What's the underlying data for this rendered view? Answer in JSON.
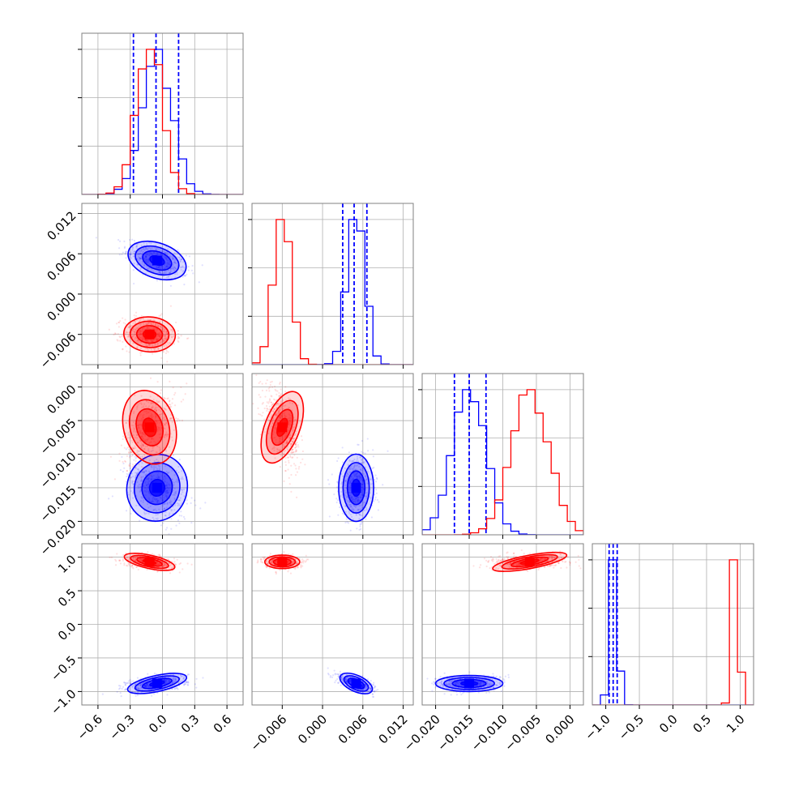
{
  "chart_data": {
    "type": "corner",
    "colors": {
      "series_a": "#0000ff",
      "series_b": "#ff0000",
      "grid": "#b0b0b0",
      "frame": "#808080"
    },
    "series": [
      {
        "color": "#0000ff",
        "centers": [
          -0.05,
          0.005,
          -0.015,
          -0.88
        ],
        "spreads": [
          0.14,
          0.0013,
          0.0025,
          0.06
        ],
        "tilt": [
          [
            -0.55,
            -0.4,
            0.35,
            0.0
          ],
          [
            0.0,
            -0.7,
            0.0
          ],
          [
            0.0,
            0.3
          ],
          []
        ],
        "quantiles": [
          [
            -0.27,
            -0.06,
            0.15
          ],
          [
            0.003,
            0.0047,
            0.0066
          ],
          [
            -0.0172,
            -0.015,
            -0.0125
          ],
          [
            -0.95,
            -0.89,
            -0.83
          ]
        ]
      },
      {
        "color": "#ff0000",
        "centers": [
          -0.12,
          -0.006,
          -0.006,
          0.93
        ],
        "spreads": [
          0.12,
          0.0013,
          0.0028,
          0.05
        ],
        "tilt": [
          [
            -0.1,
            0.45,
            -0.35,
            0.0
          ],
          [
            -0.6,
            0.0,
            0.0
          ],
          [
            0.3,
            0.25
          ],
          []
        ],
        "quantiles": []
      }
    ],
    "axes": [
      {
        "range": [
          -0.75,
          0.75
        ],
        "ticks": [
          -0.6,
          -0.3,
          0.0,
          0.3,
          0.6
        ],
        "tick_labels": [
          "−0.6",
          "−0.3",
          "0.0",
          "0.3",
          "0.6"
        ]
      },
      {
        "range": [
          -0.0105,
          0.0135
        ],
        "ticks": [
          -0.006,
          0.0,
          0.006,
          0.012
        ],
        "tick_labels": [
          "−0.006",
          "0.000",
          "0.006",
          "0.012"
        ]
      },
      {
        "range": [
          -0.022,
          0.002
        ],
        "ticks": [
          -0.02,
          -0.015,
          -0.01,
          -0.005,
          0.0
        ],
        "tick_labels": [
          "−0.020",
          "−0.015",
          "−0.010",
          "−0.005",
          "0.000"
        ]
      },
      {
        "range": [
          -1.2,
          1.2
        ],
        "ticks": [
          -1.0,
          -0.5,
          0.0,
          0.5,
          1.0
        ],
        "tick_labels": [
          "−1.0",
          "−0.5",
          "0.0",
          "0.5",
          "1.0"
        ]
      }
    ],
    "grid": true,
    "histogram_style": "step",
    "quantile_lines": "dashed"
  }
}
